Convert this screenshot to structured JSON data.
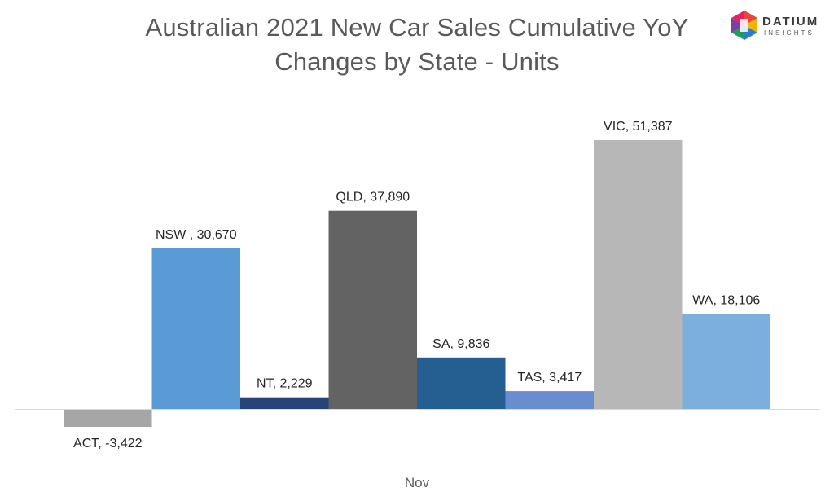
{
  "logo": {
    "name": "DATIUM",
    "tagline": "INSIGHTS"
  },
  "chart_data": {
    "type": "bar",
    "title_lines": [
      "Australian 2021 New Car Sales Cumulative YoY",
      "Changes by State - Units"
    ],
    "xlabel": "Nov",
    "ylabel": "",
    "categories": [
      "ACT",
      "NSW",
      "NT",
      "QLD",
      "SA",
      "TAS",
      "VIC",
      "WA"
    ],
    "values": [
      -3422,
      30670,
      2229,
      37890,
      9836,
      3417,
      51387,
      18106
    ],
    "data_labels": [
      "ACT, -3,422",
      "NSW , 30,670",
      "NT, 2,229",
      "QLD, 37,890",
      "SA, 9,836",
      "TAS, 3,417",
      "VIC, 51,387",
      "WA, 18,106"
    ],
    "colors": [
      "#a6a6a6",
      "#5b9bd5",
      "#264478",
      "#636363",
      "#255e91",
      "#698ed0",
      "#b7b7b7",
      "#7cafdd"
    ],
    "ylim": [
      -6000,
      61000
    ],
    "grid": false,
    "legend": "none"
  }
}
